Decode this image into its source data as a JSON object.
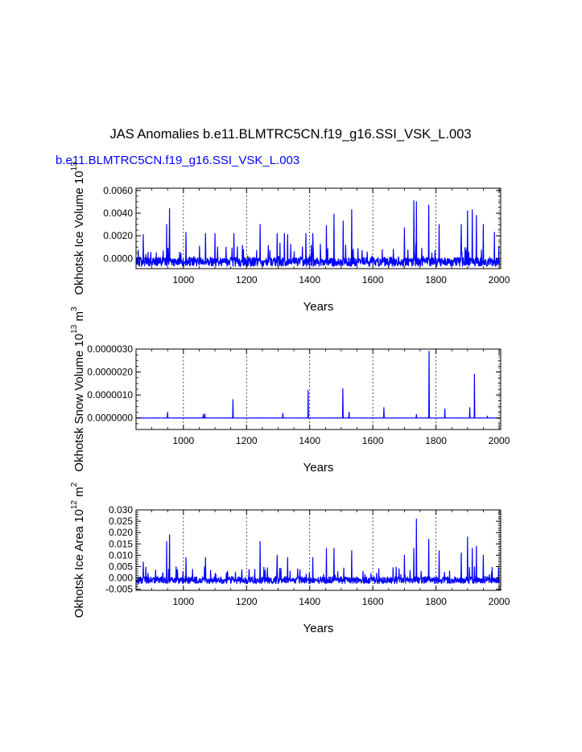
{
  "title": "JAS Anomalies b.e11.BLMTRC5CN.f19_g16.SSI_VSK_L.003",
  "subtitle": "b.e11.BLMTRC5CN.f19_g16.SSI_VSK_L.003",
  "colors": {
    "series": "#0000ff",
    "text": "#000000",
    "subtitle": "#0000ff",
    "grid": "#000000"
  },
  "chart_data": [
    {
      "type": "line",
      "ylabel": "Okhotsk Ice Volume 10",
      "ylabel_exp": "13",
      "ylabel_unit": "",
      "ylabel_unit_exp": "",
      "xlabel": "Years",
      "xlim": [
        850,
        2005
      ],
      "ylim": [
        -0.0009,
        0.0062
      ],
      "x_ticks": [
        1000,
        1200,
        1400,
        1600,
        1800,
        2000
      ],
      "x_tick_labels": [
        "1000",
        "1200",
        "1400",
        "1600",
        "1800",
        "2000"
      ],
      "y_ticks": [
        0.0,
        0.002,
        0.004,
        0.006
      ],
      "y_tick_labels": [
        "0.0000",
        "0.0020",
        "0.0040",
        "0.0060"
      ],
      "y_minor_step": 0.0005,
      "vgrid_dashed": [
        1000,
        1200,
        1400,
        1600,
        1800,
        2000
      ],
      "series": {
        "name": "Okhotsk Ice Volume",
        "baseline": -0.0003,
        "noise": 0.0008,
        "floor": -0.0008,
        "spike_rate": 0.08,
        "spike_scale": 0.0017,
        "peaks": [
          [
            873,
            0.0021
          ],
          [
            947,
            0.003
          ],
          [
            956,
            0.0044
          ],
          [
            1008,
            0.0023
          ],
          [
            1070,
            0.0022
          ],
          [
            1100,
            0.0022
          ],
          [
            1160,
            0.0022
          ],
          [
            1243,
            0.003
          ],
          [
            1297,
            0.0022
          ],
          [
            1320,
            0.0022
          ],
          [
            1330,
            0.0021
          ],
          [
            1388,
            0.0022
          ],
          [
            1410,
            0.0022
          ],
          [
            1453,
            0.0029
          ],
          [
            1477,
            0.0039
          ],
          [
            1506,
            0.0033
          ],
          [
            1533,
            0.0043
          ],
          [
            1700,
            0.0027
          ],
          [
            1730,
            0.0051
          ],
          [
            1738,
            0.005
          ],
          [
            1777,
            0.0047
          ],
          [
            1810,
            0.003
          ],
          [
            1880,
            0.003
          ],
          [
            1900,
            0.0042
          ],
          [
            1915,
            0.0043
          ],
          [
            1928,
            0.0038
          ],
          [
            1950,
            0.003
          ],
          [
            1985,
            0.0023
          ]
        ]
      }
    },
    {
      "type": "line",
      "ylabel": "Okhotsk Snow Volume 10",
      "ylabel_exp": "13",
      "ylabel_unit": "m",
      "ylabel_unit_exp": "3",
      "xlabel": "Years",
      "xlim": [
        850,
        2005
      ],
      "ylim": [
        -5e-07,
        3e-06
      ],
      "x_ticks": [
        1000,
        1200,
        1400,
        1600,
        1800,
        2000
      ],
      "x_tick_labels": [
        "1000",
        "1200",
        "1400",
        "1600",
        "1800",
        "2000"
      ],
      "y_ticks": [
        0.0,
        1e-06,
        2e-06,
        3e-06
      ],
      "y_tick_labels": [
        "0.0000000",
        "0.0000010",
        "0.0000020",
        "0.0000030"
      ],
      "y_minor_step": 2.5e-07,
      "vgrid_dashed": [
        1000,
        1200,
        1400,
        1600,
        1800,
        2000
      ],
      "series": {
        "name": "Okhotsk Snow Volume",
        "baseline": 0.0,
        "noise": 1e-08,
        "floor": -2e-08,
        "spike_rate": 0.0,
        "spike_scale": 0.0,
        "peaks": [
          [
            950,
            2.5e-07
          ],
          [
            1063,
            1.5e-07
          ],
          [
            1068,
            1.8e-07
          ],
          [
            1157,
            8e-07
          ],
          [
            1315,
            2e-07
          ],
          [
            1395,
            1.2e-06
          ],
          [
            1505,
            1.27e-06
          ],
          [
            1525,
            2.5e-07
          ],
          [
            1635,
            4.5e-07
          ],
          [
            1738,
            1.5e-07
          ],
          [
            1778,
            2.9e-06
          ],
          [
            1828,
            4e-07
          ],
          [
            1907,
            4.5e-07
          ],
          [
            1922,
            1.9e-06
          ],
          [
            1963,
            8e-08
          ]
        ]
      }
    },
    {
      "type": "line",
      "ylabel": "Okhotsk Ice Area 10",
      "ylabel_exp": "12",
      "ylabel_unit": "m",
      "ylabel_unit_exp": "2",
      "xlabel": "Years",
      "xlim": [
        850,
        2005
      ],
      "ylim": [
        -0.0055,
        0.03
      ],
      "x_ticks": [
        1000,
        1200,
        1400,
        1600,
        1800,
        2000
      ],
      "x_tick_labels": [
        "1000",
        "1200",
        "1400",
        "1600",
        "1800",
        "2000"
      ],
      "y_ticks": [
        -0.005,
        0.0,
        0.005,
        0.01,
        0.015,
        0.02,
        0.025,
        0.03
      ],
      "y_tick_labels": [
        "-0.005",
        "0.000",
        "0.005",
        "0.010",
        "0.015",
        "0.020",
        "0.025",
        "0.030"
      ],
      "y_minor_step": 0.001,
      "vgrid_dashed": [
        1000,
        1200,
        1400,
        1600,
        1800,
        2000
      ],
      "series": {
        "name": "Okhotsk Ice Area",
        "baseline": -0.001,
        "noise": 0.003,
        "floor": -0.003,
        "spike_rate": 0.07,
        "spike_scale": 0.006,
        "peaks": [
          [
            873,
            0.007
          ],
          [
            947,
            0.016
          ],
          [
            956,
            0.019
          ],
          [
            1008,
            0.009
          ],
          [
            1070,
            0.009
          ],
          [
            1243,
            0.016
          ],
          [
            1297,
            0.01
          ],
          [
            1330,
            0.009
          ],
          [
            1410,
            0.009
          ],
          [
            1453,
            0.013
          ],
          [
            1477,
            0.013
          ],
          [
            1533,
            0.012
          ],
          [
            1700,
            0.01
          ],
          [
            1730,
            0.013
          ],
          [
            1738,
            0.026
          ],
          [
            1777,
            0.017
          ],
          [
            1810,
            0.012
          ],
          [
            1880,
            0.011
          ],
          [
            1900,
            0.018
          ],
          [
            1915,
            0.013
          ],
          [
            1928,
            0.014
          ],
          [
            1950,
            0.01
          ]
        ]
      }
    }
  ]
}
